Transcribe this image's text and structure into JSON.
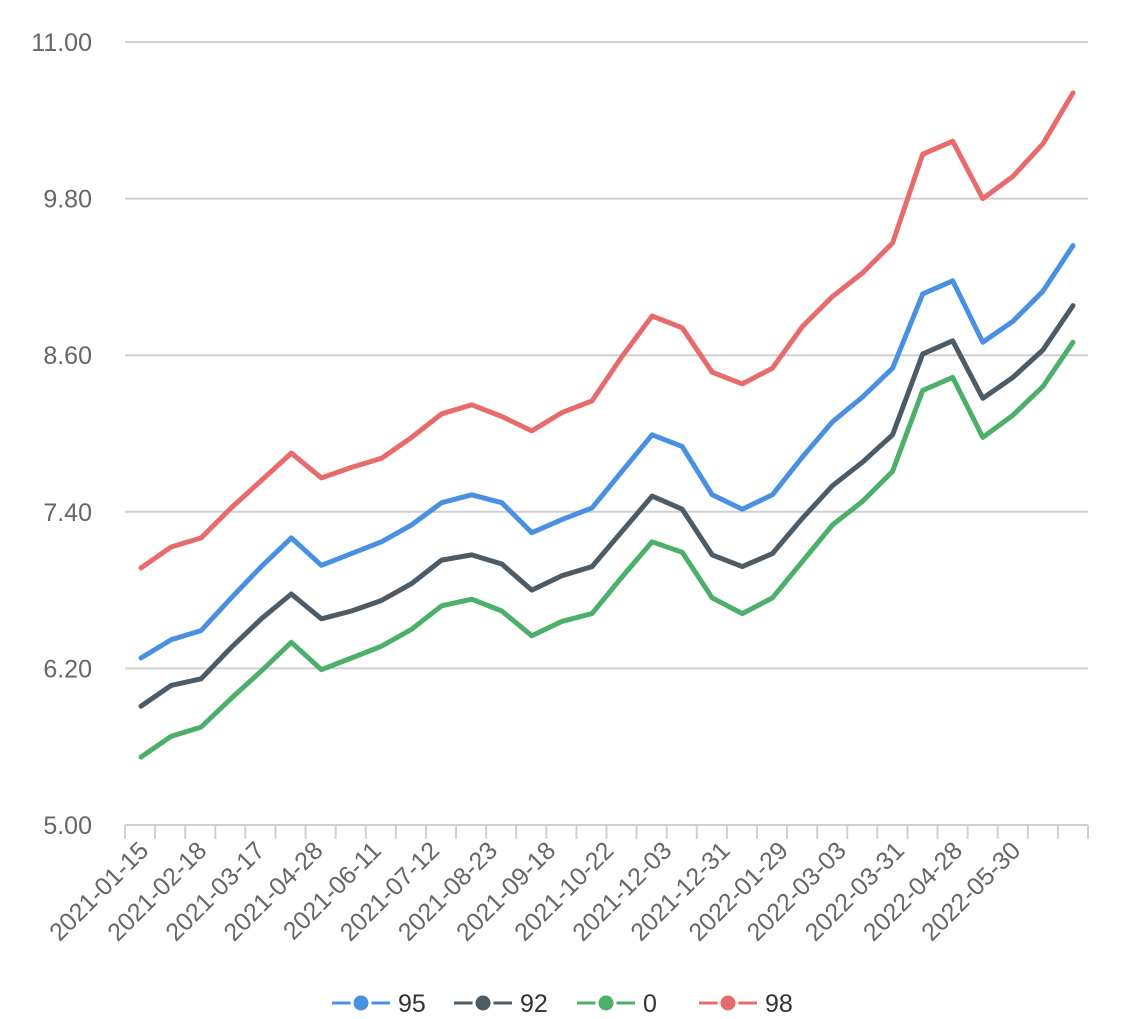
{
  "chart_data": {
    "type": "line",
    "title": "",
    "xlabel": "",
    "ylabel": "",
    "ylim": [
      5.0,
      11.0
    ],
    "y_ticks": [
      "5.00",
      "6.20",
      "7.40",
      "8.60",
      "9.80",
      "11.00"
    ],
    "grid": true,
    "legend_position": "bottom",
    "x_tick_labels": [
      "2021-01-15",
      "2021-02-18",
      "2021-03-17",
      "2021-04-28",
      "2021-06-11",
      "2021-07-12",
      "2021-08-23",
      "2021-09-18",
      "2021-10-22",
      "2021-12-03",
      "2021-12-31",
      "2022-01-29",
      "2022-03-03",
      "2022-03-31",
      "2022-04-28",
      "2022-05-30"
    ],
    "point_count": 32,
    "series": [
      {
        "name": "95",
        "color": "#4a90e2",
        "values": [
          6.28,
          6.42,
          6.49,
          6.74,
          6.98,
          7.2,
          6.99,
          7.08,
          7.17,
          7.3,
          7.47,
          7.53,
          7.47,
          7.24,
          7.34,
          7.43,
          7.71,
          7.99,
          7.9,
          7.53,
          7.42,
          7.53,
          7.82,
          8.09,
          8.28,
          8.5,
          9.07,
          9.17,
          8.7,
          8.86,
          9.09,
          9.44
        ]
      },
      {
        "name": "92",
        "color": "#4d5b67",
        "values": [
          5.91,
          6.07,
          6.12,
          6.36,
          6.58,
          6.77,
          6.58,
          6.64,
          6.72,
          6.85,
          7.03,
          7.07,
          7.0,
          6.8,
          6.91,
          6.98,
          7.25,
          7.52,
          7.42,
          7.07,
          6.98,
          7.08,
          7.35,
          7.6,
          7.78,
          7.99,
          8.61,
          8.71,
          8.27,
          8.43,
          8.64,
          8.98
        ]
      },
      {
        "name": "0",
        "color": "#4caf6a",
        "values": [
          5.52,
          5.68,
          5.75,
          5.97,
          6.18,
          6.4,
          6.19,
          6.28,
          6.37,
          6.5,
          6.68,
          6.73,
          6.64,
          6.45,
          6.56,
          6.62,
          6.9,
          7.17,
          7.09,
          6.74,
          6.62,
          6.74,
          7.02,
          7.3,
          7.48,
          7.71,
          8.33,
          8.43,
          7.97,
          8.14,
          8.36,
          8.7
        ]
      },
      {
        "name": "98",
        "color": "#e86b6b",
        "values": [
          6.97,
          7.13,
          7.2,
          7.43,
          7.64,
          7.85,
          7.66,
          7.74,
          7.81,
          7.97,
          8.15,
          8.22,
          8.13,
          8.02,
          8.16,
          8.25,
          8.59,
          8.9,
          8.81,
          8.47,
          8.38,
          8.5,
          8.82,
          9.05,
          9.23,
          9.46,
          10.14,
          10.24,
          9.8,
          9.97,
          10.22,
          10.61
        ]
      }
    ]
  }
}
